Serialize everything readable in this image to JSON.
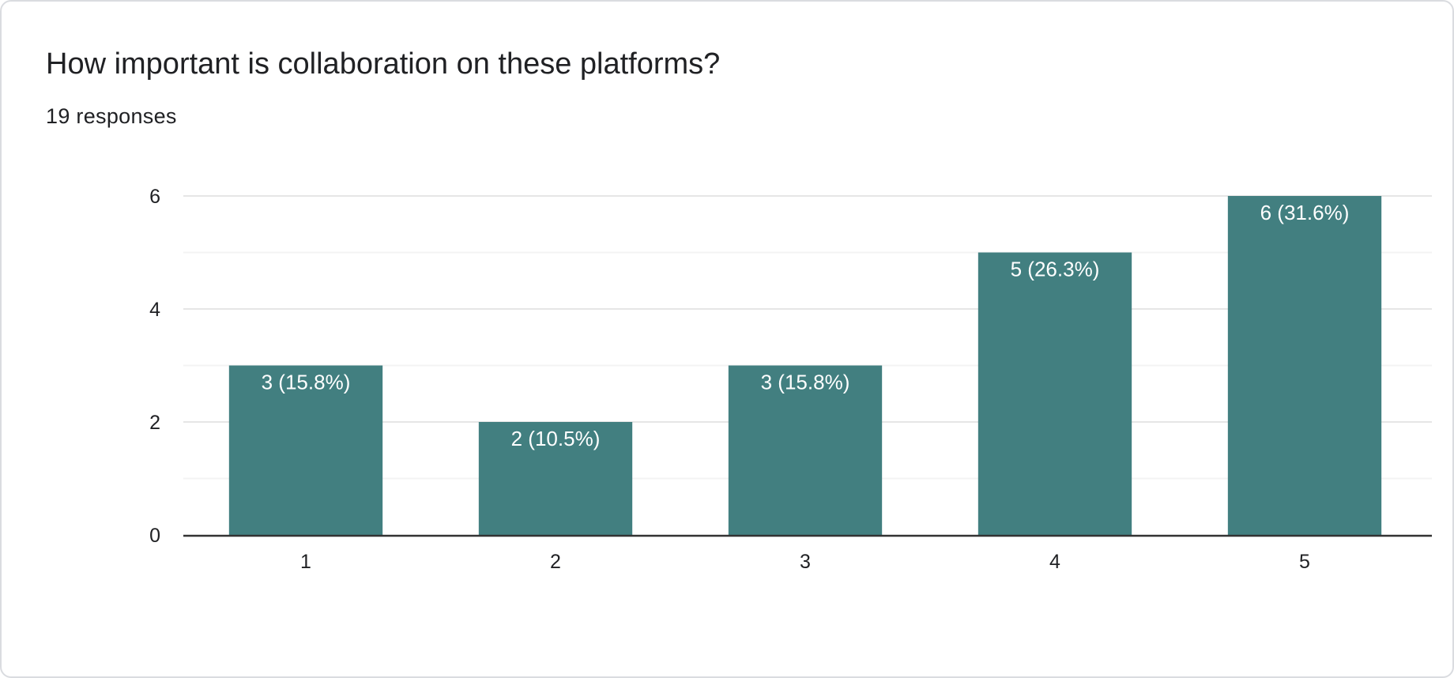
{
  "card": {
    "title": "How important is collaboration on these platforms?",
    "responses": "19 responses"
  },
  "chart_data": {
    "type": "bar",
    "categories": [
      "1",
      "2",
      "3",
      "4",
      "5"
    ],
    "values": [
      3,
      2,
      3,
      5,
      6
    ],
    "data_labels": [
      "3 (15.8%)",
      "2 (10.5%)",
      "3 (15.8%)",
      "5 (26.3%)",
      "6 (31.6%)"
    ],
    "y_ticks": [
      "0",
      "2",
      "4",
      "6"
    ],
    "ylim": [
      0,
      6
    ],
    "grid": true,
    "bar_color": "#427f80"
  }
}
